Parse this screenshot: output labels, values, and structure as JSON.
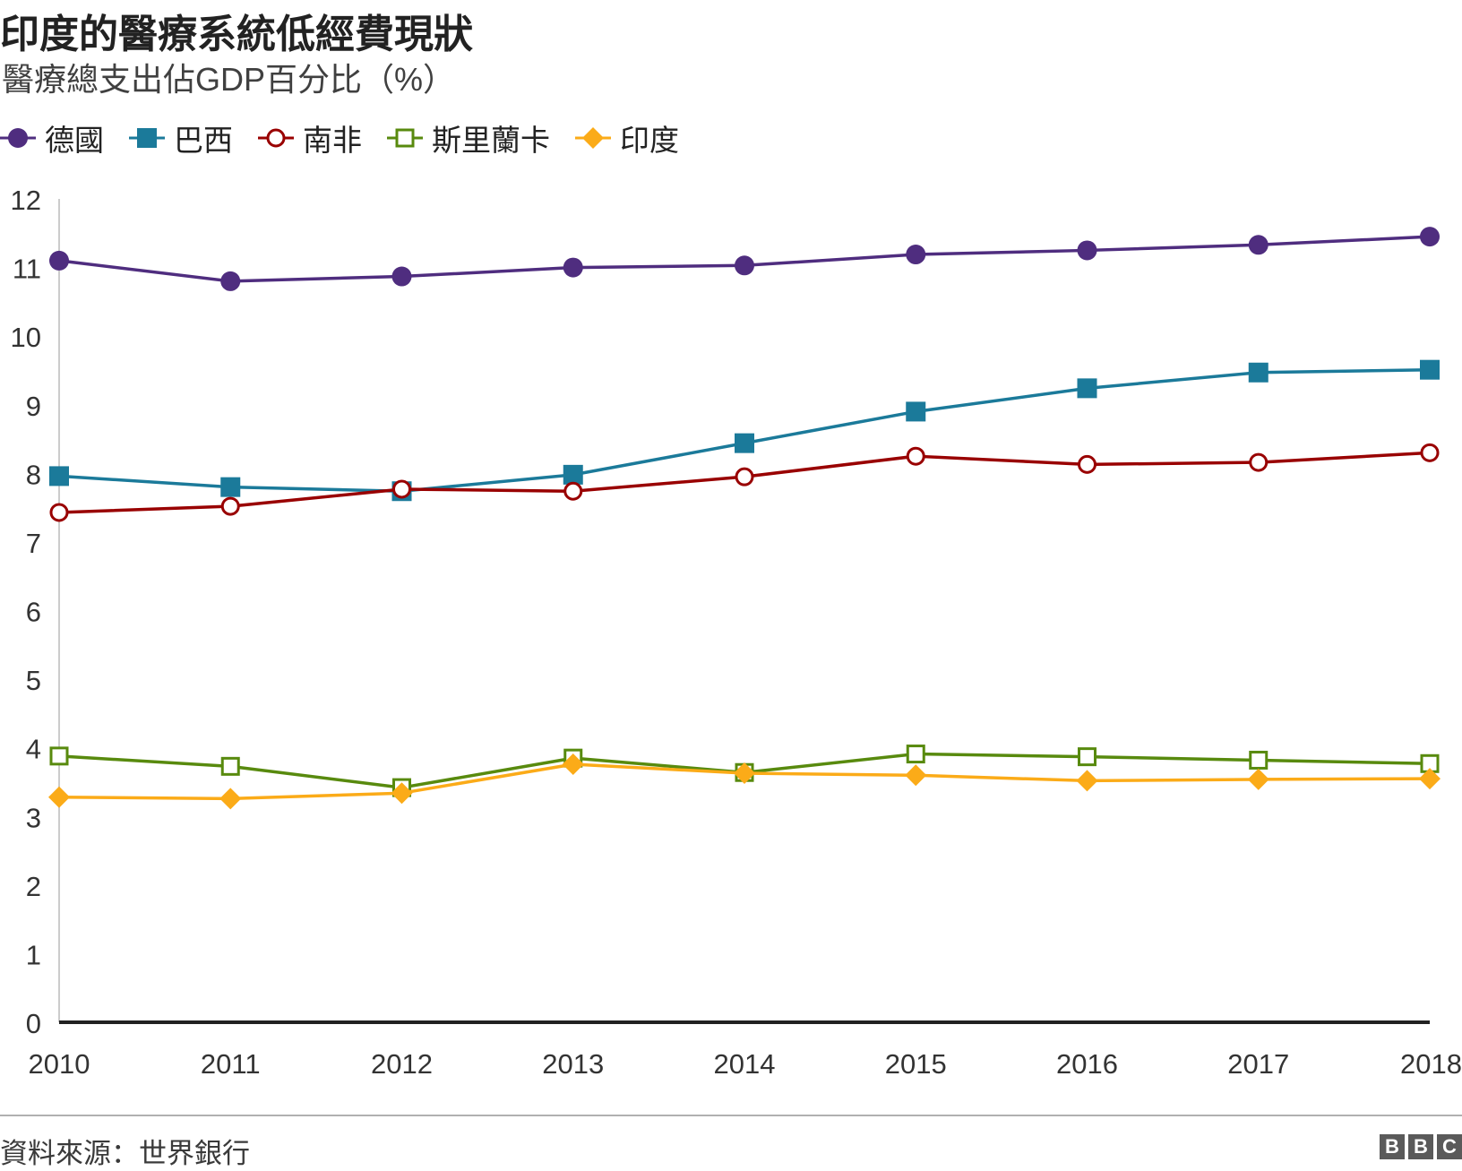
{
  "chart_data": {
    "type": "line",
    "title": "印度的醫療系統低經費現狀",
    "subtitle": "醫療總支出佔GDP百分比（%）",
    "x": [
      "2010",
      "2011",
      "2012",
      "2013",
      "2014",
      "2015",
      "2016",
      "2017",
      "2018"
    ],
    "ylim": [
      0,
      12
    ],
    "yticks": [
      "0",
      "1",
      "2",
      "3",
      "4",
      "5",
      "6",
      "7",
      "8",
      "9",
      "10",
      "11",
      "12"
    ],
    "grid": false,
    "legend_position": "top-left",
    "series": [
      {
        "name": "德國",
        "color": "#4f2d7f",
        "marker": "circle-filled",
        "values": [
          11.1,
          10.8,
          10.87,
          11.0,
          11.03,
          11.19,
          11.25,
          11.33,
          11.45
        ]
      },
      {
        "name": "巴西",
        "color": "#1b7a9a",
        "marker": "square-filled",
        "values": [
          7.96,
          7.8,
          7.74,
          7.98,
          8.44,
          8.9,
          9.24,
          9.47,
          9.51
        ]
      },
      {
        "name": "南非",
        "color": "#990000",
        "marker": "circle-open",
        "values": [
          7.43,
          7.52,
          7.77,
          7.74,
          7.95,
          8.25,
          8.13,
          8.16,
          8.3
        ]
      },
      {
        "name": "斯里蘭卡",
        "color": "#588a0e",
        "marker": "square-open",
        "values": [
          3.88,
          3.73,
          3.42,
          3.85,
          3.64,
          3.91,
          3.87,
          3.82,
          3.77
        ]
      },
      {
        "name": "印度",
        "color": "#fbab18",
        "marker": "diamond-filled",
        "values": [
          3.28,
          3.26,
          3.34,
          3.76,
          3.63,
          3.6,
          3.52,
          3.54,
          3.55
        ]
      }
    ]
  },
  "footer": {
    "source": "資料來源：世界銀行",
    "logo_letters": [
      "B",
      "B",
      "C"
    ]
  }
}
